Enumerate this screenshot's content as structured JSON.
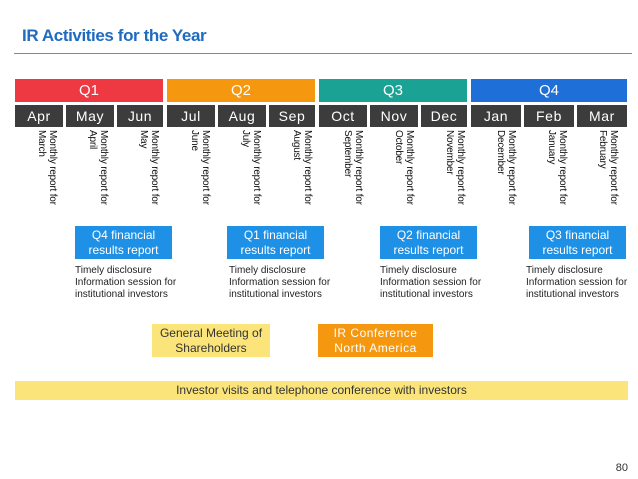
{
  "title": "IR Activities for the Year",
  "quarters": [
    {
      "label": "Q1",
      "color": "#ee3842"
    },
    {
      "label": "Q2",
      "color": "#f5970f"
    },
    {
      "label": "Q3",
      "color": "#1aa394"
    },
    {
      "label": "Q4",
      "color": "#1e6fd8"
    }
  ],
  "months": [
    "Apr",
    "May",
    "Jun",
    "Jul",
    "Aug",
    "Sep",
    "Oct",
    "Nov",
    "Dec",
    "Jan",
    "Feb",
    "Mar"
  ],
  "monthly_reports": [
    "Monthly report for March",
    "Monthly report for April",
    "Monthly report for May",
    "Monthly report for June",
    "Monthly report for July",
    "Monthly report for August",
    "Monthly report for September",
    "Monthly report for October",
    "Monthly report for November",
    "Monthly report for December",
    "Monthly report for January",
    "Monthly report for February"
  ],
  "results_boxes": [
    {
      "line1": "Q4 financial",
      "line2": "results report"
    },
    {
      "line1": "Q1 financial",
      "line2": "results report"
    },
    {
      "line1": "Q2 financial",
      "line2": "results report"
    },
    {
      "line1": "Q3 financial",
      "line2": "results report"
    }
  ],
  "notes": {
    "line1": "Timely disclosure",
    "line2": "Information session for",
    "line3": "institutional investors"
  },
  "general_meeting": {
    "line1": "General Meeting of",
    "line2": "Shareholders"
  },
  "ir_conference": {
    "line1": "IR Conference",
    "line2": "North America"
  },
  "investor_visits": "Investor visits and telephone conference with investors",
  "page_number": "80"
}
